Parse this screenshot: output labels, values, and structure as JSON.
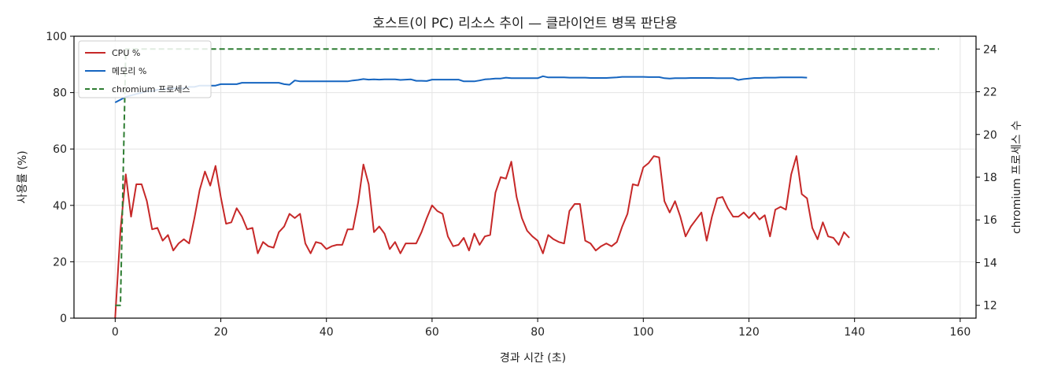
{
  "chart_data": {
    "type": "line",
    "title": "호스트(이 PC) 리소스 추이 — 클라이언트 병목 판단용",
    "xlabel": "경과 시간 (초)",
    "ylabel": "사용률 (%)",
    "y2label": "chromium 프로세스 수",
    "xlim": [
      -7.8,
      163
    ],
    "ylim": [
      0,
      100
    ],
    "y2lim": [
      11.4,
      24.6
    ],
    "x_ticks": [
      0,
      20,
      40,
      60,
      80,
      100,
      120,
      140,
      160
    ],
    "y_ticks": [
      0,
      20,
      40,
      60,
      80,
      100
    ],
    "y2_ticks": [
      12,
      14,
      16,
      18,
      20,
      22,
      24
    ],
    "grid": true,
    "legend_position": "upper-left",
    "series": [
      {
        "name": "CPU %",
        "axis": "left",
        "color": "#c62828",
        "style": "solid",
        "points": [
          [
            0,
            0
          ],
          [
            1,
            31
          ],
          [
            2,
            51
          ],
          [
            3,
            36
          ],
          [
            4,
            47.5
          ],
          [
            5,
            47.5
          ],
          [
            6,
            41.5
          ],
          [
            7,
            31.5
          ],
          [
            8,
            32
          ],
          [
            9,
            27.5
          ],
          [
            10,
            29.5
          ],
          [
            11,
            24
          ],
          [
            12,
            26.5
          ],
          [
            13,
            28
          ],
          [
            14,
            26.5
          ],
          [
            15,
            35.5
          ],
          [
            16,
            45.5
          ],
          [
            17,
            52
          ],
          [
            18,
            47
          ],
          [
            19,
            54
          ],
          [
            20,
            43
          ],
          [
            21,
            33.5
          ],
          [
            22,
            34
          ],
          [
            23,
            39
          ],
          [
            24,
            36
          ],
          [
            25,
            31.5
          ],
          [
            26,
            32
          ],
          [
            27,
            23
          ],
          [
            28,
            27
          ],
          [
            29,
            25.5
          ],
          [
            30,
            25
          ],
          [
            31,
            30.5
          ],
          [
            32,
            32.5
          ],
          [
            33,
            37
          ],
          [
            34,
            35.5
          ],
          [
            35,
            37
          ],
          [
            36,
            26.5
          ],
          [
            37,
            23
          ],
          [
            38,
            27
          ],
          [
            39,
            26.5
          ],
          [
            40,
            24.5
          ],
          [
            41,
            25.5
          ],
          [
            42,
            26
          ],
          [
            43,
            26
          ],
          [
            44,
            31.5
          ],
          [
            45,
            31.5
          ],
          [
            46,
            41
          ],
          [
            47,
            54.5
          ],
          [
            48,
            47.5
          ],
          [
            49,
            30.5
          ],
          [
            50,
            32.5
          ],
          [
            51,
            30
          ],
          [
            52,
            24.5
          ],
          [
            53,
            27
          ],
          [
            54,
            23
          ],
          [
            55,
            26.5
          ],
          [
            56,
            26.5
          ],
          [
            57,
            26.5
          ],
          [
            58,
            30.5
          ],
          [
            59,
            35.5
          ],
          [
            60,
            40
          ],
          [
            61,
            38
          ],
          [
            62,
            37
          ],
          [
            63,
            29
          ],
          [
            64,
            25.5
          ],
          [
            65,
            26
          ],
          [
            66,
            28.5
          ],
          [
            67,
            24
          ],
          [
            68,
            30
          ],
          [
            69,
            26
          ],
          [
            70,
            29
          ],
          [
            71,
            29.5
          ],
          [
            72,
            44.5
          ],
          [
            73,
            50
          ],
          [
            74,
            49.5
          ],
          [
            75,
            55.5
          ],
          [
            76,
            43
          ],
          [
            77,
            35.5
          ],
          [
            78,
            31
          ],
          [
            79,
            29
          ],
          [
            80,
            27.5
          ],
          [
            81,
            23
          ],
          [
            82,
            29.5
          ],
          [
            83,
            28
          ],
          [
            84,
            27
          ],
          [
            85,
            26.5
          ],
          [
            86,
            38
          ],
          [
            87,
            40.5
          ],
          [
            88,
            40.5
          ],
          [
            89,
            27.5
          ],
          [
            90,
            26.5
          ],
          [
            91,
            24
          ],
          [
            92,
            25.5
          ],
          [
            93,
            26.5
          ],
          [
            94,
            25.5
          ],
          [
            95,
            27
          ],
          [
            96,
            32.5
          ],
          [
            97,
            37
          ],
          [
            98,
            47.5
          ],
          [
            99,
            47
          ],
          [
            100,
            53.5
          ],
          [
            101,
            55
          ],
          [
            102,
            57.5
          ],
          [
            103,
            57
          ],
          [
            104,
            41.5
          ],
          [
            105,
            37.5
          ],
          [
            106,
            41.5
          ],
          [
            107,
            36
          ],
          [
            108,
            29
          ],
          [
            109,
            32.5
          ],
          [
            110,
            35
          ],
          [
            111,
            37.5
          ],
          [
            112,
            27.5
          ],
          [
            113,
            36
          ],
          [
            114,
            42.5
          ],
          [
            115,
            43
          ],
          [
            116,
            39
          ],
          [
            117,
            36
          ],
          [
            118,
            36
          ],
          [
            119,
            37.5
          ],
          [
            120,
            35.5
          ],
          [
            121,
            37.5
          ],
          [
            122,
            35
          ],
          [
            123,
            36.5
          ],
          [
            124,
            29
          ],
          [
            125,
            38.5
          ],
          [
            126,
            39.5
          ],
          [
            127,
            38.5
          ],
          [
            128,
            51
          ],
          [
            129,
            57.5
          ],
          [
            130,
            44
          ],
          [
            131,
            42.5
          ],
          [
            132,
            32
          ],
          [
            133,
            28
          ],
          [
            134,
            34
          ],
          [
            135,
            29
          ],
          [
            136,
            28.5
          ],
          [
            137,
            26
          ],
          [
            138,
            30.5
          ],
          [
            139,
            28.5
          ]
        ]
      },
      {
        "name": "메모리 %",
        "axis": "left",
        "color": "#1565c0",
        "style": "solid",
        "points": [
          [
            0,
            76.5
          ],
          [
            1,
            77.5
          ],
          [
            2,
            78.5
          ],
          [
            3,
            79
          ],
          [
            4,
            79.5
          ],
          [
            5,
            80
          ],
          [
            6,
            80.5
          ],
          [
            7,
            80.5
          ],
          [
            8,
            81
          ],
          [
            9,
            81
          ],
          [
            10,
            81.5
          ],
          [
            11,
            81.5
          ],
          [
            12,
            81.5
          ],
          [
            13,
            81.5
          ],
          [
            14,
            82
          ],
          [
            15,
            82
          ],
          [
            16,
            82.5
          ],
          [
            17,
            82.5
          ],
          [
            18,
            82.5
          ],
          [
            19,
            82.5
          ],
          [
            20,
            83
          ],
          [
            21,
            83
          ],
          [
            22,
            83
          ],
          [
            23,
            83
          ],
          [
            24,
            83.5
          ],
          [
            25,
            83.5
          ],
          [
            26,
            83.5
          ],
          [
            27,
            83.5
          ],
          [
            28,
            83.5
          ],
          [
            29,
            83.5
          ],
          [
            30,
            83.5
          ],
          [
            31,
            83.5
          ],
          [
            32,
            83
          ],
          [
            33,
            82.8
          ],
          [
            34,
            84.3
          ],
          [
            35,
            84
          ],
          [
            36,
            84
          ],
          [
            37,
            84
          ],
          [
            38,
            84
          ],
          [
            39,
            84
          ],
          [
            40,
            84
          ],
          [
            41,
            84
          ],
          [
            42,
            84
          ],
          [
            43,
            84
          ],
          [
            44,
            84
          ],
          [
            45,
            84.3
          ],
          [
            46,
            84.5
          ],
          [
            47,
            84.8
          ],
          [
            48,
            84.6
          ],
          [
            49,
            84.7
          ],
          [
            50,
            84.6
          ],
          [
            51,
            84.7
          ],
          [
            52,
            84.7
          ],
          [
            53,
            84.7
          ],
          [
            54,
            84.5
          ],
          [
            55,
            84.6
          ],
          [
            56,
            84.7
          ],
          [
            57,
            84.2
          ],
          [
            58,
            84.2
          ],
          [
            59,
            84.1
          ],
          [
            60,
            84.6
          ],
          [
            61,
            84.6
          ],
          [
            62,
            84.6
          ],
          [
            63,
            84.6
          ],
          [
            64,
            84.6
          ],
          [
            65,
            84.6
          ],
          [
            66,
            84
          ],
          [
            67,
            84
          ],
          [
            68,
            84
          ],
          [
            69,
            84.3
          ],
          [
            70,
            84.7
          ],
          [
            71,
            84.8
          ],
          [
            72,
            85
          ],
          [
            73,
            85
          ],
          [
            74,
            85.3
          ],
          [
            75,
            85.1
          ],
          [
            76,
            85.1
          ],
          [
            77,
            85.1
          ],
          [
            78,
            85.1
          ],
          [
            79,
            85.1
          ],
          [
            80,
            85.1
          ],
          [
            81,
            85.8
          ],
          [
            82,
            85.4
          ],
          [
            83,
            85.4
          ],
          [
            84,
            85.4
          ],
          [
            85,
            85.4
          ],
          [
            86,
            85.3
          ],
          [
            87,
            85.3
          ],
          [
            88,
            85.3
          ],
          [
            89,
            85.3
          ],
          [
            90,
            85.2
          ],
          [
            91,
            85.2
          ],
          [
            92,
            85.2
          ],
          [
            93,
            85.2
          ],
          [
            94,
            85.3
          ],
          [
            95,
            85.4
          ],
          [
            96,
            85.6
          ],
          [
            97,
            85.6
          ],
          [
            98,
            85.6
          ],
          [
            99,
            85.6
          ],
          [
            100,
            85.6
          ],
          [
            101,
            85.5
          ],
          [
            102,
            85.5
          ],
          [
            103,
            85.5
          ],
          [
            104,
            85.1
          ],
          [
            105,
            85
          ],
          [
            106,
            85.1
          ],
          [
            107,
            85.1
          ],
          [
            108,
            85.1
          ],
          [
            109,
            85.2
          ],
          [
            110,
            85.2
          ],
          [
            111,
            85.2
          ],
          [
            112,
            85.2
          ],
          [
            113,
            85.2
          ],
          [
            114,
            85.1
          ],
          [
            115,
            85.1
          ],
          [
            116,
            85.1
          ],
          [
            117,
            85.1
          ],
          [
            118,
            84.5
          ],
          [
            119,
            84.8
          ],
          [
            120,
            85
          ],
          [
            121,
            85.2
          ],
          [
            122,
            85.2
          ],
          [
            123,
            85.3
          ],
          [
            124,
            85.3
          ],
          [
            125,
            85.3
          ],
          [
            126,
            85.4
          ],
          [
            127,
            85.4
          ],
          [
            128,
            85.4
          ],
          [
            129,
            85.4
          ],
          [
            130,
            85.4
          ],
          [
            131,
            85.3
          ]
        ]
      },
      {
        "name": "chromium 프로세스",
        "axis": "right",
        "color": "#2e7d32",
        "style": "dashed",
        "points": [
          [
            0,
            12
          ],
          [
            1,
            12
          ],
          [
            2,
            24
          ],
          [
            156,
            24
          ]
        ]
      }
    ]
  }
}
